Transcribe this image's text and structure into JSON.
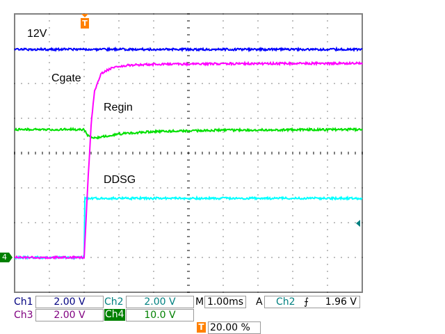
{
  "chart_data": {
    "type": "line",
    "xlabel": "",
    "ylabel": "",
    "x_unit": "ms",
    "y_unit": "div",
    "xlim": [
      -2,
      8
    ],
    "ylim": [
      -4,
      4
    ],
    "grid": true,
    "trigger_position_percent": 20,
    "annotations": [
      "12V",
      "Cgate",
      "Regin",
      "DDSG"
    ],
    "series": [
      {
        "name": "12V",
        "color": "#0000ff",
        "x": [
          -2,
          8
        ],
        "y": [
          2.98,
          2.98
        ]
      },
      {
        "name": "Cgate",
        "color": "#ff00ff",
        "x": [
          -2,
          0,
          0.1,
          0.2,
          0.3,
          0.5,
          0.8,
          1.2,
          2,
          4,
          8
        ],
        "y": [
          -3.0,
          -3.0,
          -1.0,
          0.8,
          1.8,
          2.3,
          2.45,
          2.52,
          2.55,
          2.57,
          2.58
        ]
      },
      {
        "name": "Regin",
        "color": "#00e000",
        "x": [
          -2,
          0,
          0.1,
          0.3,
          0.6,
          1,
          2,
          4,
          8
        ],
        "y": [
          0.68,
          0.68,
          0.5,
          0.44,
          0.48,
          0.55,
          0.62,
          0.66,
          0.68
        ]
      },
      {
        "name": "DDSG",
        "color": "#00ffff",
        "x": [
          -2,
          0,
          0.02,
          8
        ],
        "y": [
          -3.0,
          -3.0,
          -1.3,
          -1.3
        ]
      }
    ]
  },
  "readout": {
    "ch1_label": "Ch1",
    "ch1_scale": "2.00 V",
    "ch2_label": "Ch2",
    "ch2_scale": "2.00 V",
    "ch3_label": "Ch3",
    "ch3_scale": "2.00 V",
    "ch4_label": "Ch4",
    "ch4_scale": "10.0 V",
    "timebase_label": "M",
    "timebase": "1.00ms",
    "trigger_mode": "A",
    "trigger_source": "Ch2",
    "trigger_level": "1.96 V",
    "trigger_marker": "T",
    "trigger_position": "20.00 %"
  },
  "markers": {
    "ch4_ground": "4",
    "trigger": "T"
  },
  "colors": {
    "ch1": "#000080",
    "ch2": "#008080",
    "ch3": "#800080",
    "ch4": "#008000",
    "trigger": "#ff8000"
  }
}
